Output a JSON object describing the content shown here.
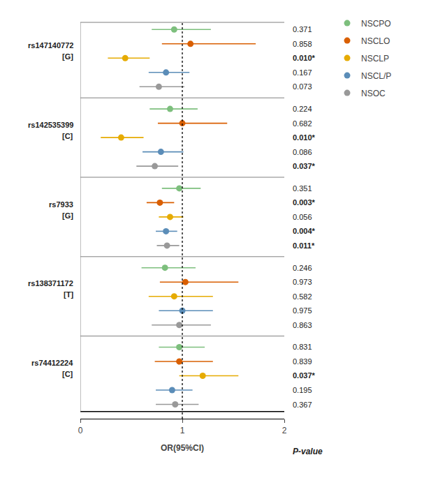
{
  "chart_data": {
    "type": "forest",
    "xlabel": "OR(95%CI)",
    "pval_label": "P-value",
    "categories": [
      [
        "rs147140772",
        "[G]"
      ],
      [
        "rs142535399",
        "[C]"
      ],
      [
        "rs7933",
        "[G]"
      ],
      [
        "rs138371172",
        "[T]"
      ],
      [
        "rs74412224",
        "[C]"
      ]
    ],
    "series": [
      {
        "name": "NSCPO",
        "color": "#7dbf7d",
        "values": [
          0.92,
          0.88,
          0.97,
          0.83,
          0.97
        ],
        "ci_lo": [
          0.7,
          0.68,
          0.8,
          0.6,
          0.77
        ],
        "ci_hi": [
          1.28,
          1.15,
          1.18,
          1.13,
          1.22
        ],
        "p_values": [
          "0.371",
          "0.224",
          "0.351",
          "0.246",
          "0.831"
        ],
        "p_bold": [
          false,
          false,
          false,
          false,
          false
        ]
      },
      {
        "name": "NSCLO",
        "color": "#d95f02",
        "values": [
          1.08,
          1.0,
          0.78,
          1.03,
          0.97
        ],
        "ci_lo": [
          0.8,
          0.76,
          0.65,
          0.78,
          0.73
        ],
        "ci_hi": [
          1.72,
          1.44,
          0.92,
          1.55,
          1.3
        ],
        "p_values": [
          "0.858",
          "0.682",
          "0.003*",
          "0.973",
          "0.839"
        ],
        "p_bold": [
          false,
          false,
          true,
          false,
          false
        ]
      },
      {
        "name": "NSCLP",
        "color": "#e6ab02",
        "values": [
          0.44,
          0.4,
          0.88,
          0.92,
          1.2
        ],
        "ci_lo": [
          0.27,
          0.2,
          0.77,
          0.67,
          0.97
        ],
        "ci_hi": [
          0.68,
          0.62,
          1.01,
          1.3,
          1.55
        ],
        "p_values": [
          "0.010*",
          "0.010*",
          "0.056",
          "0.582",
          "0.037*"
        ],
        "p_bold": [
          true,
          true,
          false,
          false,
          true
        ]
      },
      {
        "name": "NSCL/P",
        "color": "#5b8db8",
        "values": [
          0.84,
          0.79,
          0.84,
          1.0,
          0.9
        ],
        "ci_lo": [
          0.67,
          0.61,
          0.74,
          0.77,
          0.74
        ],
        "ci_hi": [
          1.07,
          1.01,
          0.95,
          1.3,
          1.1
        ],
        "p_values": [
          "0.167",
          "0.086",
          "0.004*",
          "0.975",
          "0.195"
        ],
        "p_bold": [
          false,
          false,
          true,
          false,
          false
        ]
      },
      {
        "name": "NSOC",
        "color": "#999999",
        "values": [
          0.77,
          0.73,
          0.85,
          0.97,
          0.93
        ],
        "ci_lo": [
          0.58,
          0.55,
          0.75,
          0.7,
          0.74
        ],
        "ci_hi": [
          1.02,
          0.96,
          0.97,
          1.28,
          1.16
        ],
        "p_values": [
          "0.073",
          "0.037*",
          "0.011*",
          "0.863",
          "0.367"
        ],
        "p_bold": [
          false,
          true,
          true,
          false,
          false
        ]
      }
    ],
    "xlim": [
      0,
      2
    ],
    "xticks": [
      0,
      1,
      2
    ],
    "reference_line": 1,
    "grid": false,
    "legend": "upper right"
  }
}
